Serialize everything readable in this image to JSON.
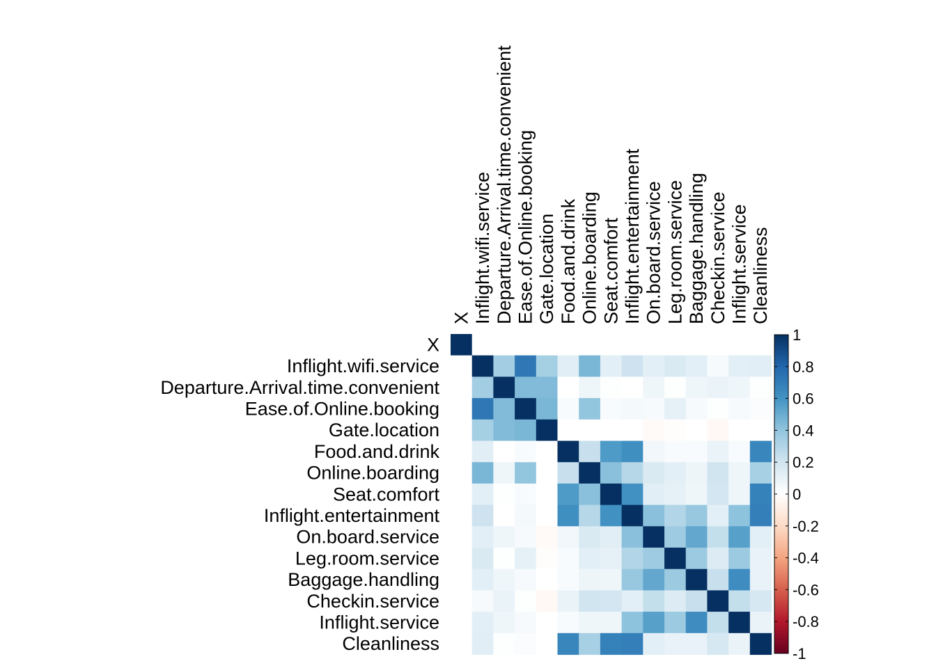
{
  "chart_data": {
    "type": "heatmap",
    "title": "",
    "variables": [
      "X",
      "Inflight.wifi.service",
      "Departure.Arrival.time.convenient",
      "Ease.of.Online.booking",
      "Gate.location",
      "Food.and.drink",
      "Online.boarding",
      "Seat.comfort",
      "Inflight.entertainment",
      "On.board.service",
      "Leg.room.service",
      "Baggage.handling",
      "Checkin.service",
      "Inflight.service",
      "Cleanliness"
    ],
    "col_labels": [
      "X",
      "Inflight.wifi.service",
      "Departure.Arrival.time.convenient",
      "Ease.of.Online.booking",
      "Gate.location",
      "Food.and.drink",
      "Online.boarding",
      "Seat.comfort",
      "Inflight.entertainment",
      "On.board.service",
      "Leg.room.service",
      "Baggage.handling",
      "Checkin.service",
      "Inflight.service",
      "Cleanliness"
    ],
    "matrix": [
      [
        1,
        0,
        0,
        0,
        0,
        0,
        0,
        0,
        0,
        0,
        0,
        0,
        0,
        0,
        0
      ],
      [
        0,
        1,
        0.35,
        0.72,
        0.34,
        0.13,
        0.46,
        0.12,
        0.21,
        0.12,
        0.16,
        0.12,
        0.04,
        0.12,
        0.13
      ],
      [
        0,
        0.35,
        1,
        0.44,
        0.44,
        0,
        0.07,
        0.01,
        0,
        0.07,
        0.01,
        0.07,
        0.09,
        0.07,
        0.01
      ],
      [
        0,
        0.72,
        0.44,
        1,
        0.46,
        0.03,
        0.4,
        0.03,
        0.05,
        0.04,
        0.11,
        0.04,
        0.01,
        0.04,
        0.02
      ],
      [
        0,
        0.34,
        0.44,
        0.46,
        1,
        0,
        0,
        0,
        0,
        -0.03,
        -0.01,
        0,
        -0.04,
        0,
        0
      ],
      [
        0,
        0.13,
        0,
        0.03,
        0,
        1,
        0.23,
        0.57,
        0.62,
        0.06,
        0.03,
        0.03,
        0.09,
        0.03,
        0.66
      ],
      [
        0,
        0.46,
        0.07,
        0.4,
        0,
        0.23,
        1,
        0.42,
        0.29,
        0.16,
        0.12,
        0.08,
        0.2,
        0.07,
        0.33
      ],
      [
        0,
        0.12,
        0.01,
        0.03,
        0,
        0.57,
        0.42,
        1,
        0.61,
        0.13,
        0.11,
        0.07,
        0.19,
        0.07,
        0.68
      ],
      [
        0,
        0.21,
        0,
        0.05,
        0,
        0.62,
        0.29,
        0.61,
        1,
        0.42,
        0.3,
        0.38,
        0.12,
        0.41,
        0.69
      ],
      [
        0,
        0.12,
        0.07,
        0.04,
        -0.03,
        0.06,
        0.16,
        0.13,
        0.42,
        1,
        0.36,
        0.52,
        0.24,
        0.55,
        0.12
      ],
      [
        0,
        0.16,
        0.01,
        0.11,
        -0.01,
        0.03,
        0.12,
        0.11,
        0.3,
        0.36,
        1,
        0.37,
        0.15,
        0.37,
        0.1
      ],
      [
        0,
        0.12,
        0.07,
        0.04,
        0,
        0.03,
        0.08,
        0.07,
        0.38,
        0.52,
        0.37,
        1,
        0.23,
        0.63,
        0.1
      ],
      [
        0,
        0.04,
        0.09,
        0.01,
        -0.04,
        0.09,
        0.2,
        0.19,
        0.12,
        0.24,
        0.15,
        0.23,
        1,
        0.24,
        0.18
      ],
      [
        0,
        0.12,
        0.07,
        0.04,
        0,
        0.03,
        0.07,
        0.07,
        0.41,
        0.55,
        0.37,
        0.63,
        0.24,
        1,
        0.09
      ],
      [
        0,
        0.13,
        0.01,
        0.02,
        0,
        0.66,
        0.33,
        0.68,
        0.69,
        0.12,
        0.1,
        0.1,
        0.18,
        0.09,
        1
      ]
    ],
    "colorbar": {
      "range": [
        -1,
        1
      ],
      "tick_labels": [
        "1",
        "0.8",
        "0.6",
        "0.4",
        "0.2",
        "0",
        "-0.2",
        "-0.4",
        "-0.6",
        "-0.8",
        "-1"
      ],
      "tick_values": [
        1,
        0.8,
        0.6,
        0.4,
        0.2,
        0,
        -0.2,
        -0.4,
        -0.6,
        -0.8,
        -1
      ]
    },
    "color_scale": {
      "negative_end": "#67001f",
      "midpoint": "#ffffff",
      "positive_end": "#053061"
    }
  }
}
